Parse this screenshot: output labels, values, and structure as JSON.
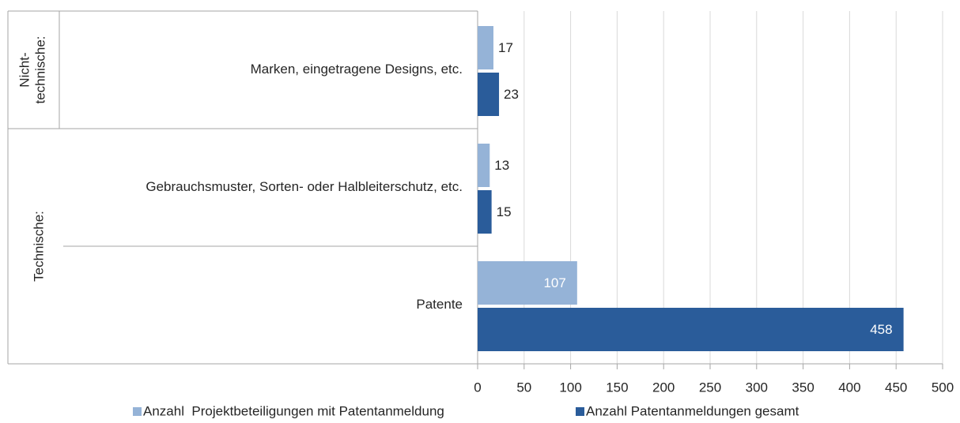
{
  "chart_data": {
    "type": "hbar",
    "categories": [
      "Marken, eingetragene Designs, etc.",
      "Gebrauchsmuster, Sorten- oder Halbleiterschutz, etc.",
      "Patente"
    ],
    "groups": [
      {
        "label_lines": [
          "Nicht-",
          "technische:"
        ],
        "categories": [
          0
        ]
      },
      {
        "label_lines": [
          "Technische:"
        ],
        "categories": [
          1,
          2
        ]
      }
    ],
    "series": [
      {
        "name": "Anzahl  Projektbeteiligungen mit Patentanmeldung",
        "color": "#95b3d7",
        "values": [
          17,
          13,
          107
        ]
      },
      {
        "name": "Anzahl Patentanmeldungen gesamt",
        "color": "#2a5c9a",
        "values": [
          23,
          15,
          458
        ]
      }
    ],
    "xlim": [
      0,
      500
    ],
    "xticks": [
      0,
      50,
      100,
      150,
      200,
      250,
      300,
      350,
      400,
      450,
      500
    ],
    "grid": true,
    "legend": "bottom"
  }
}
